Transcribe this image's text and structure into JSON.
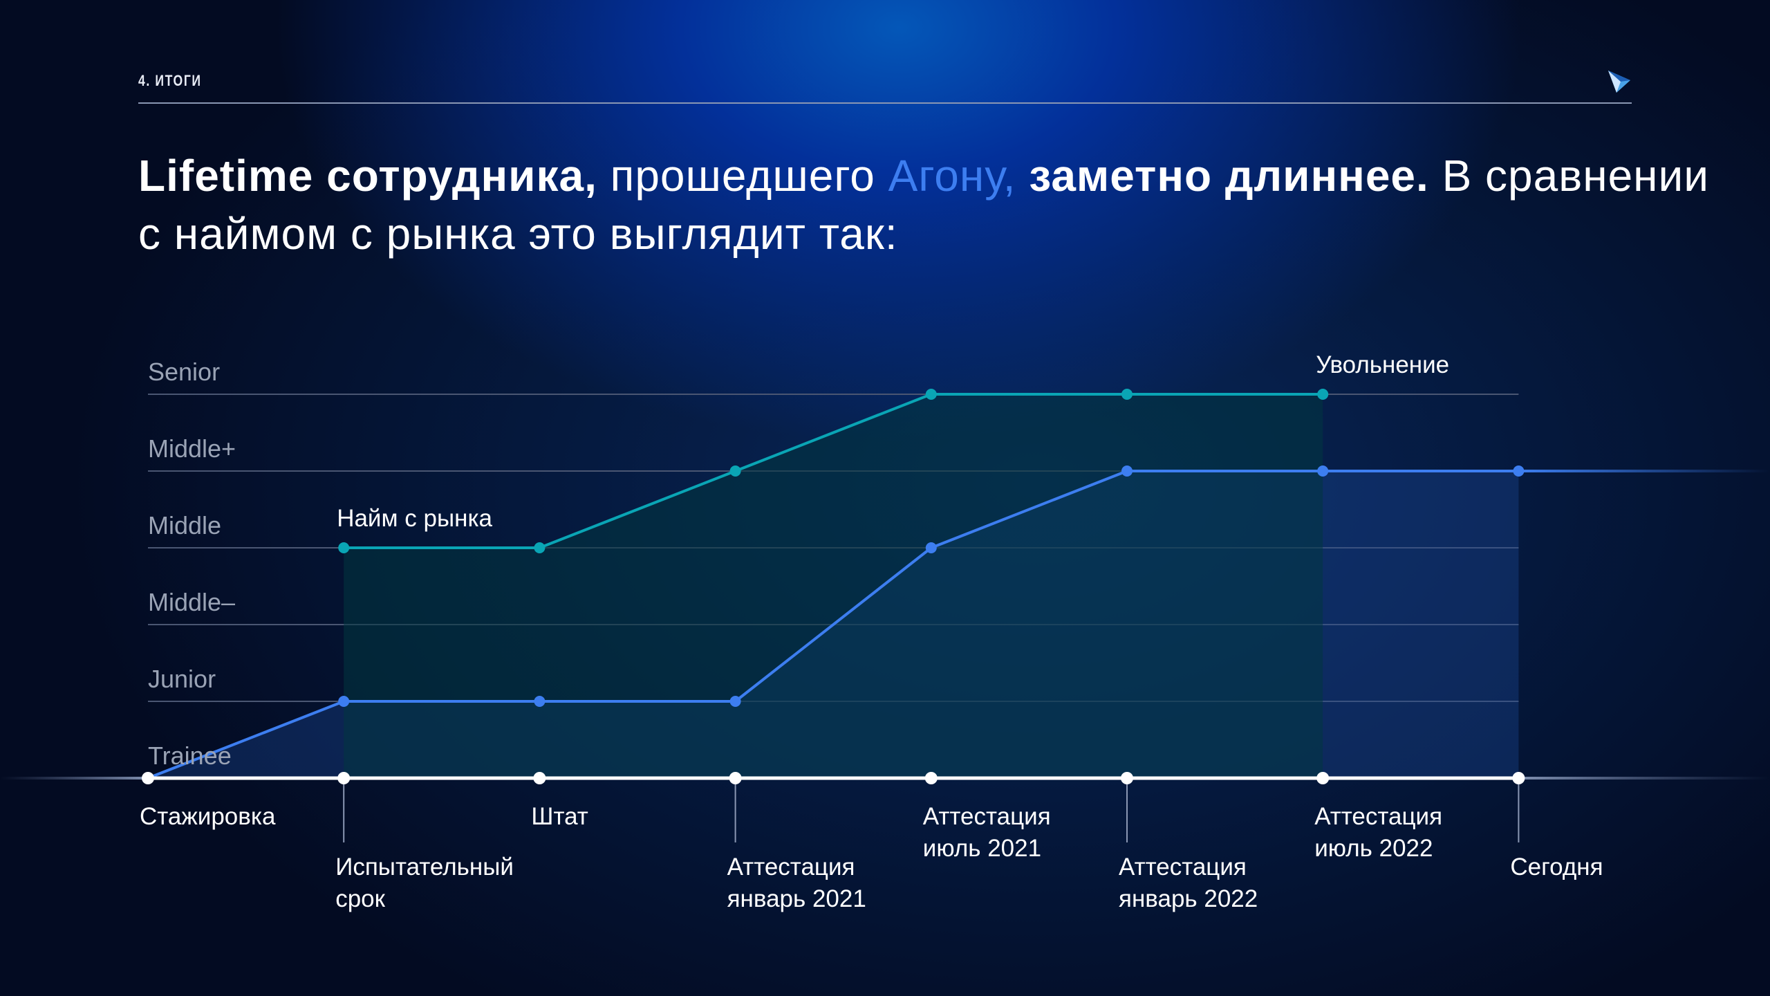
{
  "header": {
    "section": "4. ИТОГИ",
    "logo": "argona-logo-icon"
  },
  "title": {
    "part1_bold": "Lifetime сотрудника,",
    "part2": " прошедшего ",
    "part3_accent": "Агону,",
    "part4_bold": " заметно длиннее.",
    "part5": " В сравнении с наймом с рынка это выглядит так:"
  },
  "colors": {
    "argona": "#3d7ef0",
    "market": "#0aa5b5",
    "accent": "#3d7ef0"
  },
  "chart_data": {
    "type": "line",
    "y_levels": [
      "Trainee",
      "Junior",
      "Middle–",
      "Middle",
      "Middle+",
      "Senior"
    ],
    "x": [
      [
        "Стажировка"
      ],
      [
        "Испытательный",
        "срок"
      ],
      [
        "Штат"
      ],
      [
        "Аттестация",
        "январь 2021"
      ],
      [
        "Аттестация",
        "июль 2021"
      ],
      [
        "Аттестация",
        "январь 2022"
      ],
      [
        "Аттестация",
        "июль 2022"
      ],
      [
        "Сегодня"
      ]
    ],
    "series": [
      {
        "name": "Агона",
        "values": [
          0,
          1,
          1,
          1,
          3,
          4,
          4,
          4
        ]
      },
      {
        "name": "Найм с рынка",
        "values": [
          null,
          3,
          3,
          4,
          5,
          5,
          5,
          null
        ]
      }
    ],
    "annotations": {
      "market_start": "Найм с рынка",
      "market_end": "Увольнение"
    }
  }
}
